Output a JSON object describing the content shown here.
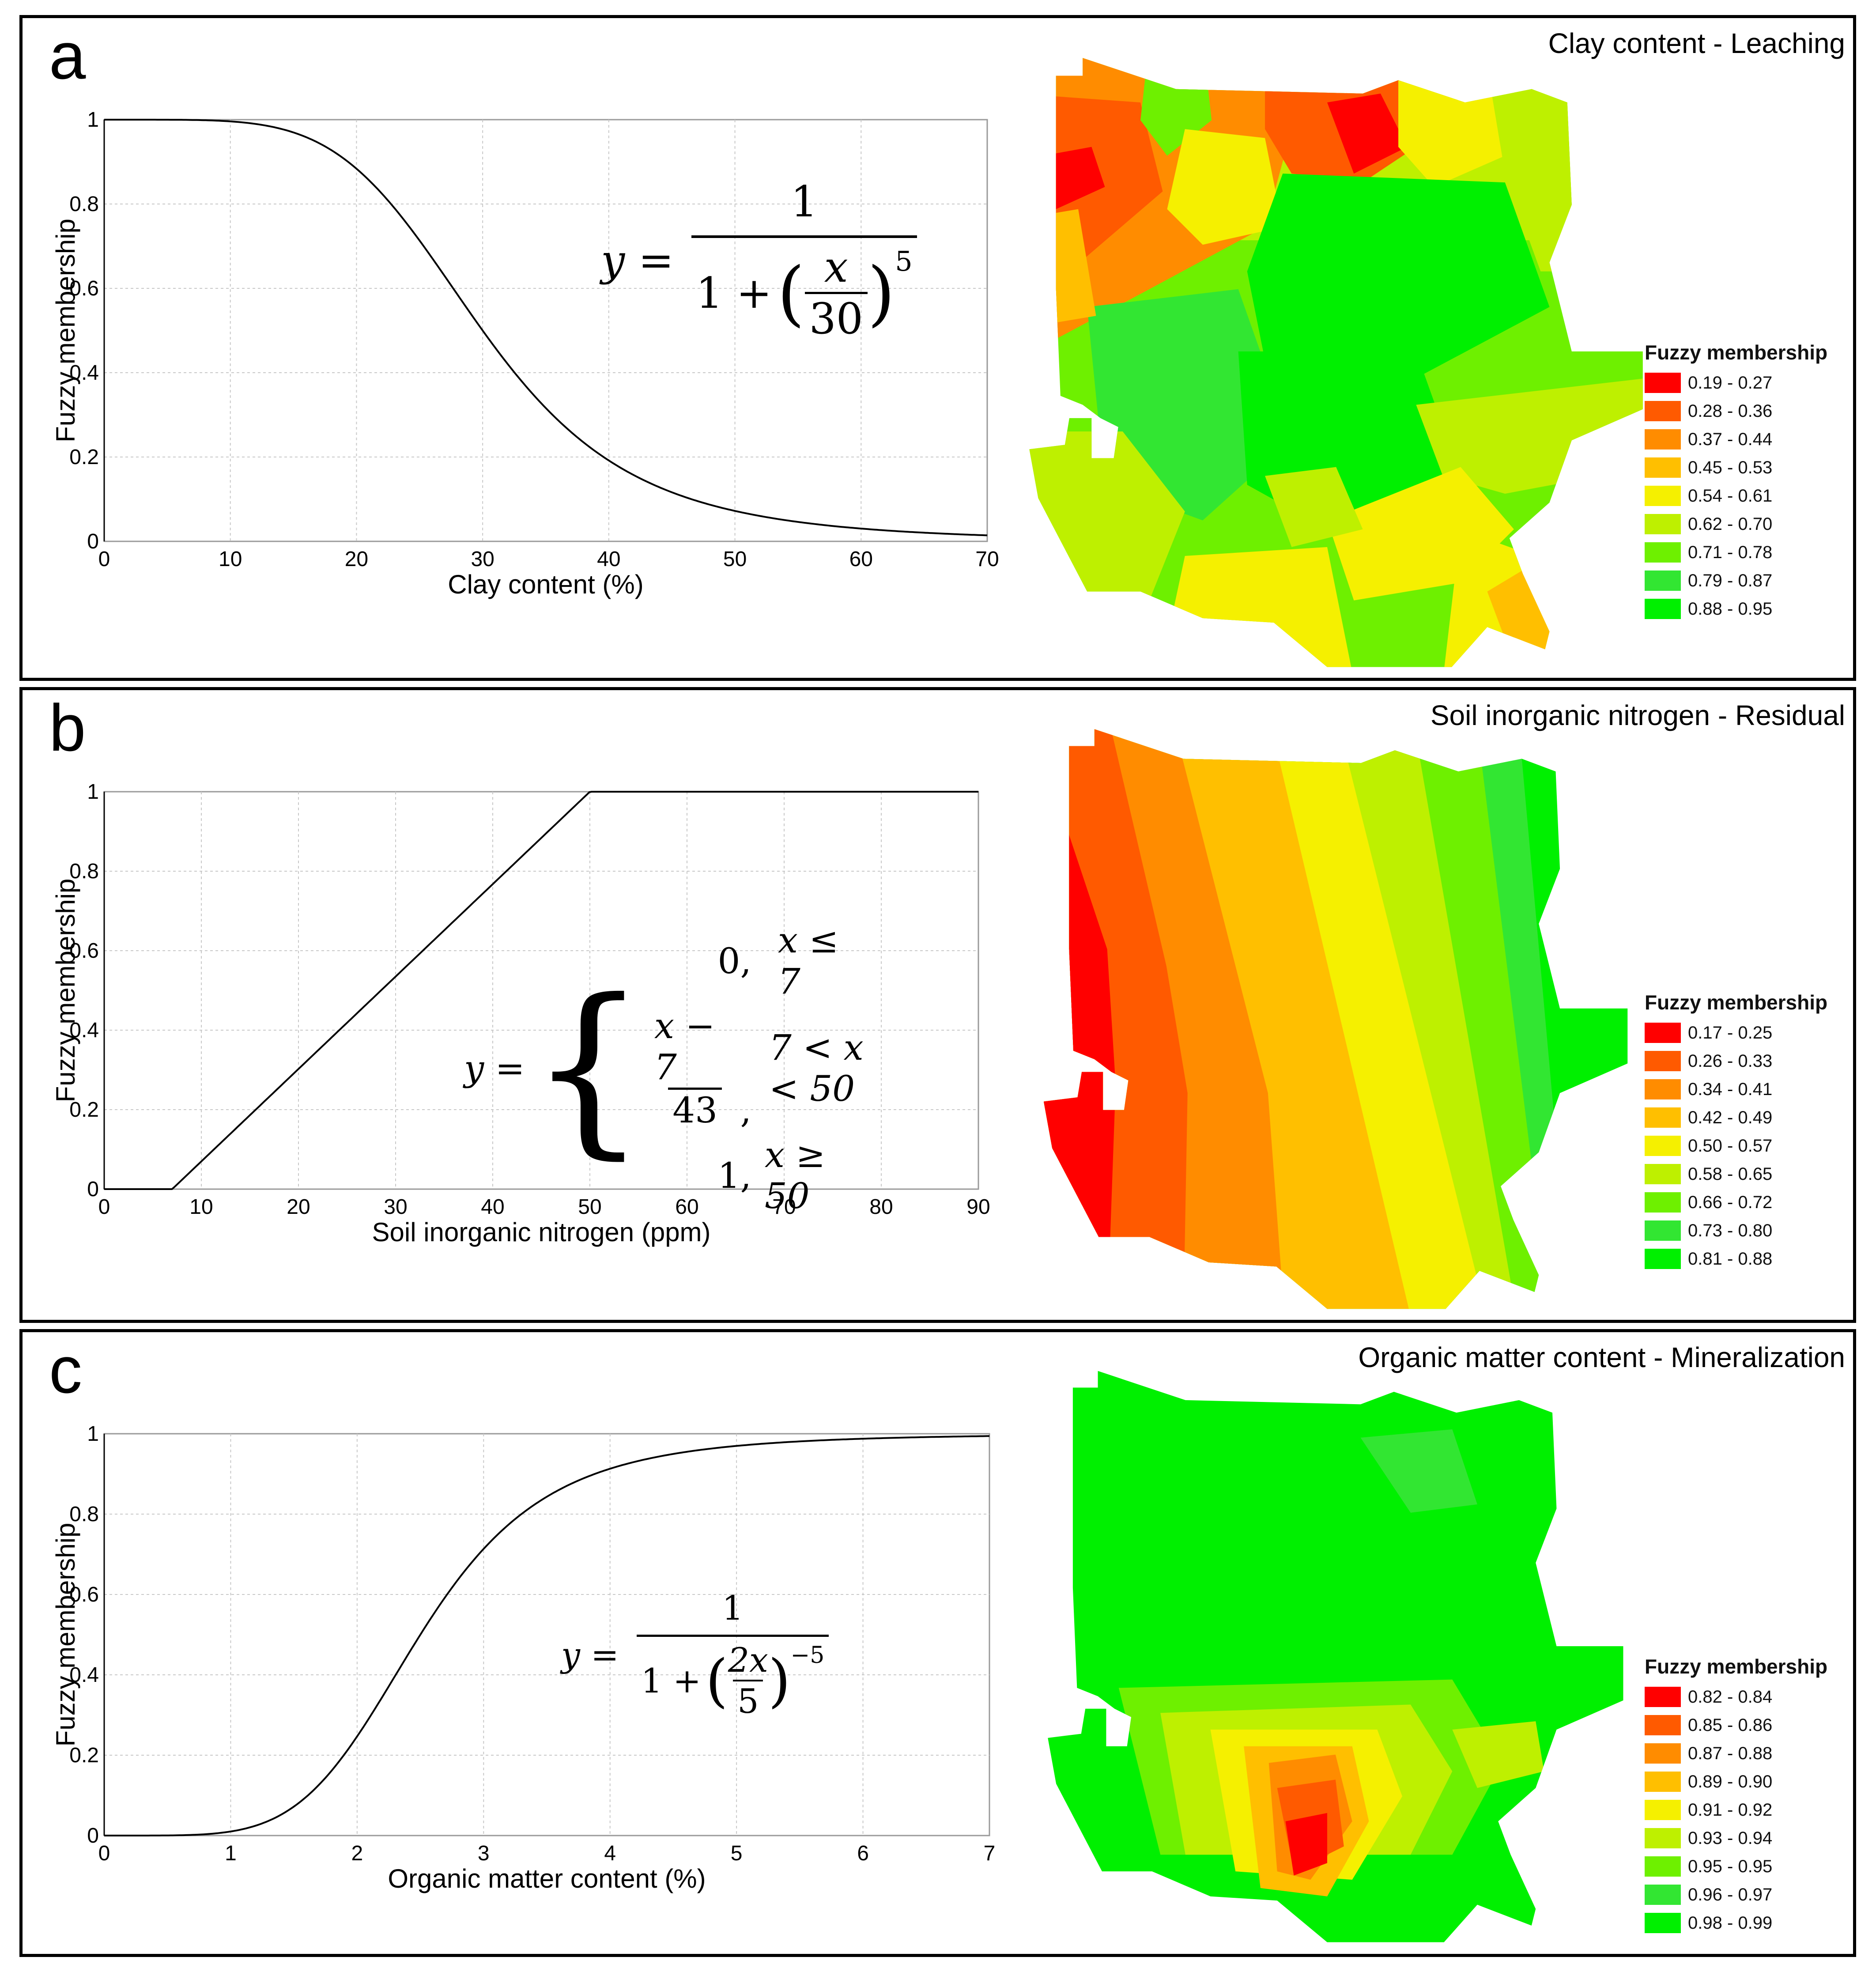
{
  "panels": [
    {
      "id": "a",
      "letter": "a",
      "map_title": "Clay content - Leaching",
      "legend_title": "Fuzzy membership",
      "legend": [
        "0.19 - 0.27",
        "0.28 - 0.36",
        "0.37 - 0.44",
        "0.45 - 0.53",
        "0.54 - 0.61",
        "0.62 - 0.70",
        "0.71 - 0.78",
        "0.79 - 0.87",
        "0.88 - 0.95"
      ]
    },
    {
      "id": "b",
      "letter": "b",
      "map_title": "Soil inorganic nitrogen - Residual",
      "legend_title": "Fuzzy membership",
      "legend": [
        "0.17 - 0.25",
        "0.26 - 0.33",
        "0.34 - 0.41",
        "0.42 - 0.49",
        "0.50 - 0.57",
        "0.58 - 0.65",
        "0.66 - 0.72",
        "0.73 - 0.80",
        "0.81 - 0.88"
      ]
    },
    {
      "id": "c",
      "letter": "c",
      "map_title": "Organic matter content - Mineralization",
      "legend_title": "Fuzzy membership",
      "legend": [
        "0.82 - 0.84",
        "0.85 - 0.86",
        "0.87 - 0.88",
        "0.89 - 0.90",
        "0.91 - 0.92",
        "0.93 - 0.94",
        "0.95 - 0.95",
        "0.96 - 0.97",
        "0.98 - 0.99"
      ]
    }
  ],
  "legend_colors": [
    "#ff0000",
    "#ff5a00",
    "#ff8c00",
    "#ffbf00",
    "#f5f000",
    "#bef000",
    "#6ef000",
    "#32e632",
    "#00f000"
  ],
  "equations": {
    "a": {
      "lhs": "y =",
      "num": "1",
      "den_prefix": "1 +",
      "inner_num": "x",
      "inner_den": "30",
      "exp": "5"
    },
    "b": {
      "lhs": "y =",
      "row1_val": "0,",
      "row1_cond": "x ≤ 7",
      "row2_num": "x − 7",
      "row2_den": "43",
      "row2_comma": ",",
      "row2_cond": "7 < x < 50",
      "row3_val": "1,",
      "row3_cond": "x ≥ 50"
    },
    "c": {
      "lhs": "y =",
      "num": "1",
      "den_prefix": "1 +",
      "inner_num": "2x",
      "inner_den": "5",
      "exp": "−5"
    }
  },
  "chart_data": [
    {
      "type": "line",
      "panel": "a",
      "function": "y = 1 / (1 + (x/30)^5)",
      "x": [
        0,
        5,
        10,
        15,
        20,
        25,
        30,
        35,
        40,
        45,
        50,
        55,
        60,
        65,
        70
      ],
      "y": [
        1.0,
        1.0,
        0.996,
        0.97,
        0.884,
        0.712,
        0.5,
        0.316,
        0.192,
        0.116,
        0.073,
        0.048,
        0.03,
        0.021,
        0.015
      ],
      "xlabel": "Clay content (%)",
      "ylabel": "Fuzzy membership",
      "xlim": [
        0,
        70
      ],
      "ylim": [
        0,
        1
      ],
      "xticks": [
        "0",
        "10",
        "20",
        "30",
        "40",
        "50",
        "60",
        "70"
      ],
      "yticks": [
        "0",
        "0.2",
        "0.4",
        "0.6",
        "0.8",
        "1"
      ],
      "grid": true
    },
    {
      "type": "line",
      "panel": "b",
      "function": "y = 0 (x<=7); (x-7)/43 (7<x<50); 1 (x>=50)",
      "x": [
        0,
        7,
        50,
        90
      ],
      "y": [
        0,
        0,
        1,
        1
      ],
      "xlabel": "Soil inorganic nitrogen (ppm)",
      "ylabel": "Fuzzy membership",
      "xlim": [
        0,
        90
      ],
      "ylim": [
        0,
        1
      ],
      "xticks": [
        "0",
        "10",
        "20",
        "30",
        "40",
        "50",
        "60",
        "70",
        "80",
        "90"
      ],
      "yticks": [
        "0",
        "0.2",
        "0.4",
        "0.6",
        "0.8",
        "1"
      ],
      "grid": true
    },
    {
      "type": "line",
      "panel": "c",
      "function": "y = 1 / (1 + (2x/5)^-5)",
      "x": [
        0,
        0.5,
        1,
        1.5,
        2,
        2.5,
        3,
        3.5,
        4,
        4.5,
        5,
        5.5,
        6,
        6.5,
        7
      ],
      "y": [
        0,
        0.0,
        0.01,
        0.072,
        0.247,
        0.5,
        0.714,
        0.843,
        0.913,
        0.95,
        0.97,
        0.981,
        0.988,
        0.992,
        0.995
      ],
      "xlabel": "Organic matter content (%)",
      "ylabel": "Fuzzy membership",
      "xlim": [
        0,
        7
      ],
      "ylim": [
        0,
        1
      ],
      "xticks": [
        "0",
        "1",
        "2",
        "3",
        "4",
        "5",
        "6",
        "7"
      ],
      "yticks": [
        "0",
        "0.2",
        "0.4",
        "0.6",
        "0.8",
        "1"
      ],
      "grid": true
    }
  ]
}
